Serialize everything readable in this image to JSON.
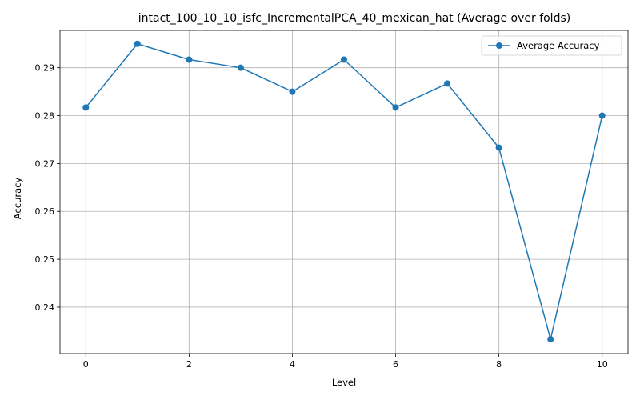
{
  "chart_data": {
    "type": "line",
    "title": "intact_100_10_10_isfc_IncrementalPCA_40_mexican_hat (Average over folds)",
    "xlabel": "Level",
    "ylabel": "Accuracy",
    "xlim": [
      -0.5,
      10.5
    ],
    "ylim": [
      0.2303,
      0.2978
    ],
    "xticks": [
      0,
      2,
      4,
      6,
      8,
      10
    ],
    "xtick_labels": [
      "0",
      "2",
      "4",
      "6",
      "8",
      "10"
    ],
    "yticks": [
      0.24,
      0.25,
      0.26,
      0.27,
      0.28,
      0.29
    ],
    "ytick_labels": [
      "0.24",
      "0.25",
      "0.26",
      "0.27",
      "0.28",
      "0.29"
    ],
    "grid": true,
    "legend_position": "top-right",
    "series": [
      {
        "name": "Average Accuracy",
        "color": "#1f77b4",
        "marker": "circle",
        "x": [
          0,
          1,
          2,
          3,
          4,
          5,
          6,
          7,
          8,
          9,
          10
        ],
        "y": [
          0.2817,
          0.295,
          0.2917,
          0.29,
          0.285,
          0.2917,
          0.2817,
          0.2867,
          0.2733,
          0.2333,
          0.28
        ]
      }
    ]
  }
}
